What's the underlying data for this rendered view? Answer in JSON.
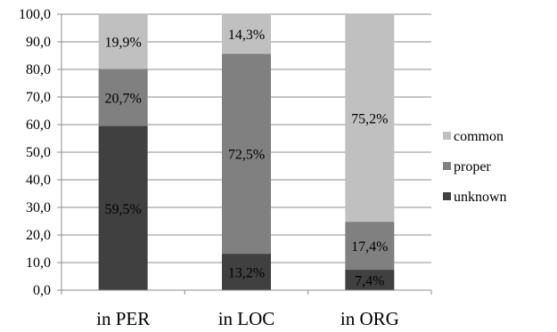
{
  "chart_data": {
    "type": "bar",
    "stacked": true,
    "categories": [
      "in PER",
      "in LOC",
      "in ORG"
    ],
    "series": [
      {
        "name": "unknown",
        "values": [
          59.5,
          13.2,
          7.4
        ],
        "labels": [
          "59,5%",
          "13,2%",
          "7,4%"
        ],
        "color": "#404040"
      },
      {
        "name": "proper",
        "values": [
          20.7,
          72.5,
          17.4
        ],
        "labels": [
          "20,7%",
          "72,5%",
          "17,4%"
        ],
        "color": "#808080"
      },
      {
        "name": "common",
        "values": [
          19.9,
          14.3,
          75.2
        ],
        "labels": [
          "19,9%",
          "14,3%",
          "75,2%"
        ],
        "color": "#c0c0c0"
      }
    ],
    "ylim": [
      0,
      100
    ],
    "yticks": [
      0,
      10,
      20,
      30,
      40,
      50,
      60,
      70,
      80,
      90,
      100
    ],
    "ytick_labels": [
      "0,0",
      "10,0",
      "20,0",
      "30,0",
      "40,0",
      "50,0",
      "60,0",
      "70,0",
      "80,0",
      "90,0",
      "100,0"
    ],
    "grid": true,
    "legend_position": "right",
    "legend_order": [
      "common",
      "proper",
      "unknown"
    ],
    "title": "",
    "xlabel": "",
    "ylabel": ""
  }
}
